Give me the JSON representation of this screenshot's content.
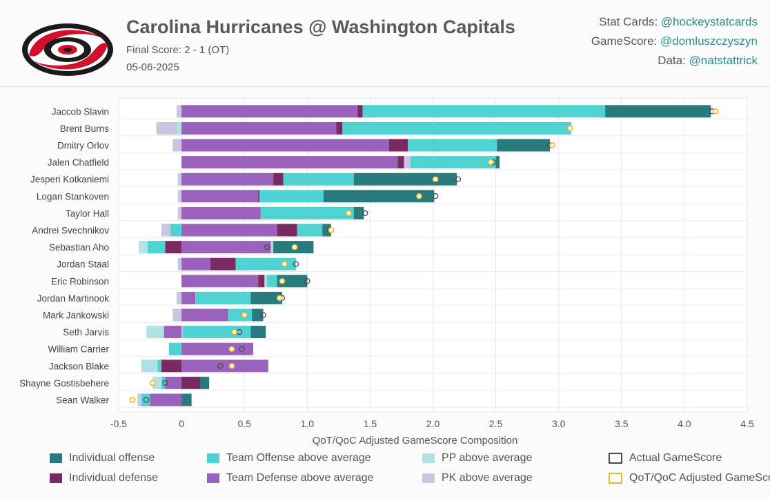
{
  "header": {
    "title": "Carolina Hurricanes @ Washington Capitals",
    "score": "Final Score: 2 - 1 (OT)",
    "date": "05-06-2025",
    "credits": [
      {
        "label": "Stat Cards: ",
        "handle": "@hockeystatcards"
      },
      {
        "label": "GameScore: ",
        "handle": "@domluszczyszyn"
      },
      {
        "label": "Data: ",
        "handle": "@natstattrick"
      }
    ]
  },
  "colors": {
    "ind_off": "#2a7b7d",
    "ind_def": "#7a2a63",
    "team_off": "#4fd2d2",
    "team_def": "#9a62bd",
    "pp": "#b1e2e3",
    "pk": "#c7c8e0",
    "actual": "#4a4a4a",
    "adjusted": "#f0b429",
    "logo_red": "#d1102e"
  },
  "legend": [
    {
      "key": "ind_off",
      "label": "Individual offense",
      "style": "fill"
    },
    {
      "key": "ind_def",
      "label": "Individual defense",
      "style": "fill"
    },
    {
      "key": "team_off",
      "label": "Team Offense above average",
      "style": "fill"
    },
    {
      "key": "team_def",
      "label": "Team Defense above average",
      "style": "fill"
    },
    {
      "key": "pp",
      "label": "PP above average",
      "style": "fill"
    },
    {
      "key": "pk",
      "label": "PK above average",
      "style": "fill"
    },
    {
      "key": "actual",
      "label": "Actual GameScore",
      "style": "hollow"
    },
    {
      "key": "adjusted",
      "label": "QoT/QoC Adjusted GameScore",
      "style": "hollow"
    }
  ],
  "chart_data": {
    "type": "bar",
    "orientation": "horizontal",
    "stacked": true,
    "xlabel": "QoT/QoC Adjusted GameScore Composition",
    "xlim": [
      -0.5,
      4.5
    ],
    "xticks": [
      -0.5,
      0,
      0.5,
      1.0,
      1.5,
      2.0,
      2.5,
      3.0,
      3.5,
      4.0,
      4.5
    ],
    "xtick_labels": [
      "-0.5",
      "0",
      "0.5",
      "1.0",
      "1.5",
      "2.0",
      "2.5",
      "3.0",
      "3.5",
      "4.0",
      "4.5"
    ],
    "grid": true,
    "legend_position": "bottom",
    "players": [
      {
        "name": "Jaccob Slavin",
        "segments": [
          {
            "k": "pk",
            "v": -0.04
          },
          {
            "k": "team_def",
            "v": 1.4
          },
          {
            "k": "ind_def",
            "v": 0.04
          },
          {
            "k": "team_off",
            "v": 1.93
          },
          {
            "k": "ind_off",
            "v": 0.84
          }
        ],
        "actual": 4.22,
        "adjusted": 4.25
      },
      {
        "name": "Brent Burns",
        "segments": [
          {
            "k": "pk",
            "v": -0.17
          },
          {
            "k": "pp",
            "v": -0.03
          },
          {
            "k": "team_def",
            "v": 1.23
          },
          {
            "k": "ind_def",
            "v": 0.05
          },
          {
            "k": "team_off",
            "v": 1.82
          }
        ],
        "actual": 3.09,
        "adjusted": 3.09
      },
      {
        "name": "Dmitry Orlov",
        "segments": [
          {
            "k": "pk",
            "v": -0.07
          },
          {
            "k": "team_def",
            "v": 1.65
          },
          {
            "k": "ind_def",
            "v": 0.15
          },
          {
            "k": "team_off",
            "v": 0.71
          },
          {
            "k": "ind_off",
            "v": 0.42
          }
        ],
        "actual": 2.93,
        "adjusted": 2.95
      },
      {
        "name": "Jalen Chatfield",
        "segments": [
          {
            "k": "team_def",
            "v": 1.72
          },
          {
            "k": "ind_def",
            "v": 0.05
          },
          {
            "k": "pk",
            "v": 0.05
          },
          {
            "k": "team_off",
            "v": 0.68
          },
          {
            "k": "ind_off",
            "v": 0.03
          }
        ],
        "actual": 2.48,
        "adjusted": 2.46
      },
      {
        "name": "Jesperi Kotkaniemi",
        "segments": [
          {
            "k": "pk",
            "v": -0.03
          },
          {
            "k": "team_def",
            "v": 0.73
          },
          {
            "k": "ind_def",
            "v": 0.08
          },
          {
            "k": "team_off",
            "v": 0.56
          },
          {
            "k": "ind_off",
            "v": 0.82
          }
        ],
        "actual": 2.2,
        "adjusted": 2.02
      },
      {
        "name": "Logan Stankoven",
        "segments": [
          {
            "k": "pk",
            "v": -0.03
          },
          {
            "k": "team_def",
            "v": 0.61
          },
          {
            "k": "ind_def",
            "v": 0.01
          },
          {
            "k": "team_off",
            "v": 0.51
          },
          {
            "k": "ind_off",
            "v": 0.88
          }
        ],
        "actual": 2.02,
        "adjusted": 1.89
      },
      {
        "name": "Taylor Hall",
        "segments": [
          {
            "k": "pk",
            "v": -0.03
          },
          {
            "k": "team_def",
            "v": 0.63
          },
          {
            "k": "team_off",
            "v": 0.74
          },
          {
            "k": "ind_off",
            "v": 0.08
          }
        ],
        "actual": 1.46,
        "adjusted": 1.33
      },
      {
        "name": "Andrei Svechnikov",
        "segments": [
          {
            "k": "pk",
            "v": -0.07
          },
          {
            "k": "team_off",
            "v": -0.09
          },
          {
            "k": "team_def",
            "v": 0.76
          },
          {
            "k": "ind_def",
            "v": 0.16
          },
          {
            "k": "team_off",
            "v": 0.2
          },
          {
            "k": "ind_off",
            "v": 0.07
          }
        ],
        "actual": 1.18,
        "adjusted": 1.19
      },
      {
        "name": "Sebastian Aho",
        "segments": [
          {
            "k": "pp",
            "v": -0.07
          },
          {
            "k": "team_off",
            "v": -0.14
          },
          {
            "k": "ind_def",
            "v": -0.13
          },
          {
            "k": "team_def",
            "v": 0.71
          },
          {
            "k": "pk",
            "v": 0.02
          },
          {
            "k": "ind_off",
            "v": 0.32
          }
        ],
        "actual": 0.68,
        "adjusted": 0.9
      },
      {
        "name": "Jordan Staal",
        "segments": [
          {
            "k": "pk",
            "v": -0.03
          },
          {
            "k": "team_def",
            "v": 0.23
          },
          {
            "k": "ind_def",
            "v": 0.2
          },
          {
            "k": "team_off",
            "v": 0.48
          }
        ],
        "actual": 0.91,
        "adjusted": 0.82
      },
      {
        "name": "Eric Robinson",
        "segments": [
          {
            "k": "team_def",
            "v": 0.61
          },
          {
            "k": "ind_def",
            "v": 0.05
          },
          {
            "k": "pp",
            "v": 0.02
          },
          {
            "k": "team_off",
            "v": 0.08
          },
          {
            "k": "ind_off",
            "v": 0.24
          }
        ],
        "actual": 1.0,
        "adjusted": 0.8
      },
      {
        "name": "Jordan Martinook",
        "segments": [
          {
            "k": "pk",
            "v": -0.04
          },
          {
            "k": "team_def",
            "v": 0.11
          },
          {
            "k": "team_off",
            "v": 0.44
          },
          {
            "k": "ind_off",
            "v": 0.25
          }
        ],
        "actual": 0.8,
        "adjusted": 0.78
      },
      {
        "name": "Mark Jankowski",
        "segments": [
          {
            "k": "pk",
            "v": -0.07
          },
          {
            "k": "team_def",
            "v": 0.37
          },
          {
            "k": "team_off",
            "v": 0.19
          },
          {
            "k": "ind_off",
            "v": 0.09
          }
        ],
        "actual": 0.65,
        "adjusted": 0.5
      },
      {
        "name": "Seth Jarvis",
        "segments": [
          {
            "k": "pp",
            "v": -0.14
          },
          {
            "k": "team_def",
            "v": -0.14
          },
          {
            "k": "pk",
            "v": 0.01
          },
          {
            "k": "team_off",
            "v": 0.54
          },
          {
            "k": "ind_off",
            "v": 0.12
          }
        ],
        "actual": 0.46,
        "adjusted": 0.42
      },
      {
        "name": "William Carrier",
        "segments": [
          {
            "k": "team_off",
            "v": -0.1
          },
          {
            "k": "team_def",
            "v": 0.57
          }
        ],
        "actual": 0.48,
        "adjusted": 0.4
      },
      {
        "name": "Jackson Blake",
        "segments": [
          {
            "k": "pp",
            "v": -0.13
          },
          {
            "k": "team_off",
            "v": -0.03
          },
          {
            "k": "ind_def",
            "v": -0.16
          },
          {
            "k": "team_def",
            "v": 0.69
          }
        ],
        "actual": 0.31,
        "adjusted": 0.4
      },
      {
        "name": "Shayne Gostisbehere",
        "segments": [
          {
            "k": "pp",
            "v": -0.07
          },
          {
            "k": "team_off",
            "v": -0.03
          },
          {
            "k": "team_def",
            "v": -0.13
          },
          {
            "k": "ind_def",
            "v": 0.15
          },
          {
            "k": "ind_off",
            "v": 0.07
          }
        ],
        "actual": -0.13,
        "adjusted": -0.23
      },
      {
        "name": "Sean Walker",
        "segments": [
          {
            "k": "pk",
            "v": -0.03
          },
          {
            "k": "team_off",
            "v": -0.07
          },
          {
            "k": "team_def",
            "v": -0.25
          },
          {
            "k": "ind_off",
            "v": 0.08
          }
        ],
        "actual": -0.28,
        "adjusted": -0.39
      }
    ]
  }
}
